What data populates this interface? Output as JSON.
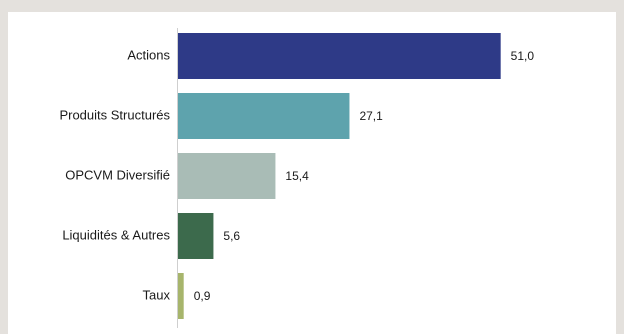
{
  "chart_data": {
    "type": "bar",
    "orientation": "horizontal",
    "categories": [
      "Actions",
      "Produits Structurés",
      "OPCVM Diversifié",
      "Liquidités & Autres",
      "Taux"
    ],
    "values": [
      51.0,
      27.1,
      15.4,
      5.6,
      0.9
    ],
    "value_labels": [
      "51,0",
      "27,1",
      "15,4",
      "5,6",
      "0,9"
    ],
    "colors": [
      "#2e3a87",
      "#5ea3ad",
      "#a9bcb6",
      "#3c6a4c",
      "#a7b56c"
    ],
    "title": "",
    "xlabel": "",
    "ylabel": "",
    "grid": false,
    "legend": "none"
  }
}
